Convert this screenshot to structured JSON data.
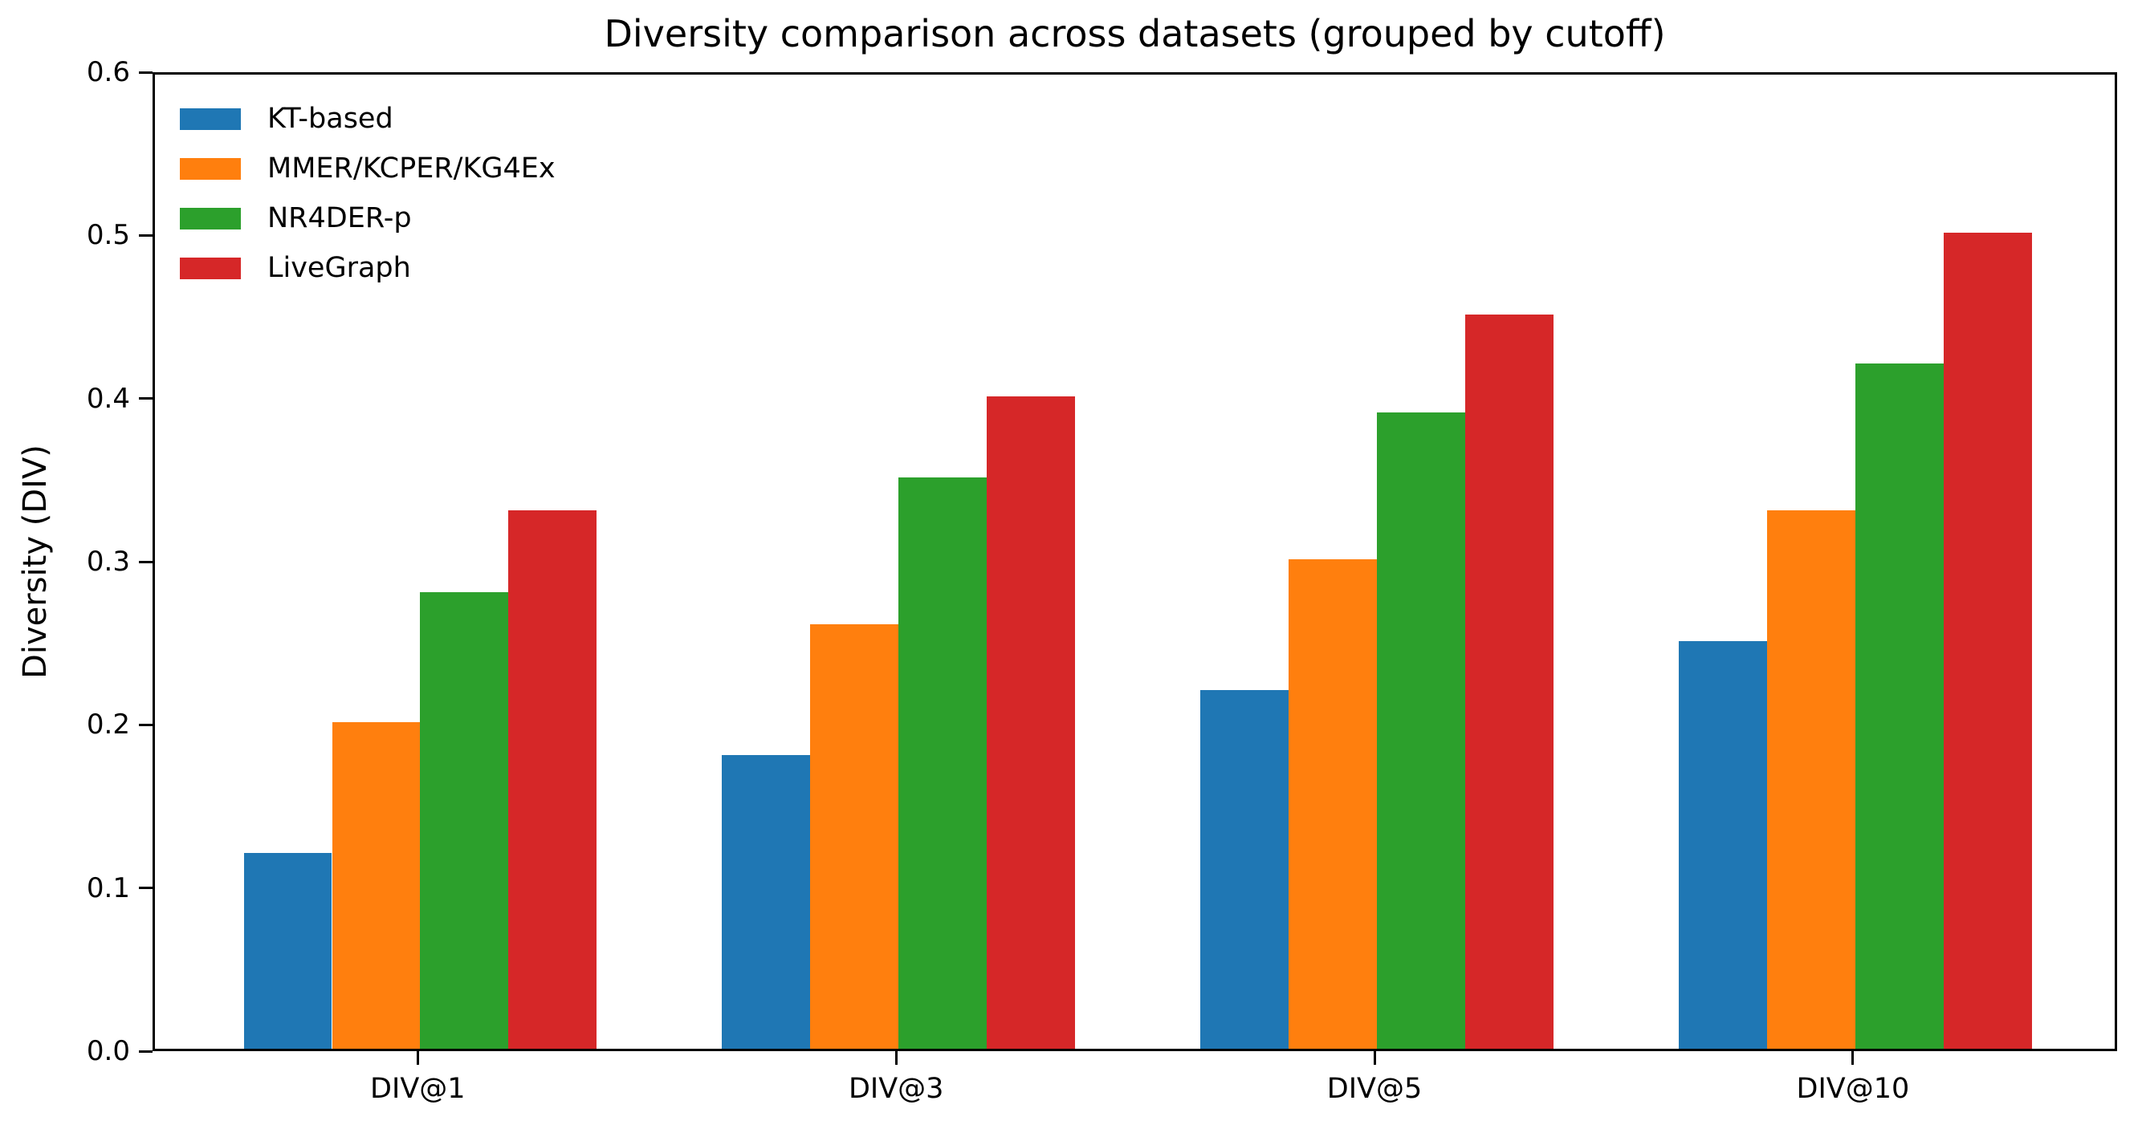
{
  "chart_data": {
    "type": "bar",
    "title": "Diversity comparison across datasets (grouped by cutoff)",
    "xlabel": "",
    "ylabel": "Diversity (DIV)",
    "categories": [
      "DIV@1",
      "DIV@3",
      "DIV@5",
      "DIV@10"
    ],
    "series": [
      {
        "name": "KT-based",
        "color": "#1f77b4",
        "values": [
          0.12,
          0.18,
          0.22,
          0.25
        ]
      },
      {
        "name": "MMER/KCPER/KG4Ex",
        "color": "#ff7f0e",
        "values": [
          0.2,
          0.26,
          0.3,
          0.33
        ]
      },
      {
        "name": "NR4DER-p",
        "color": "#2ca02c",
        "values": [
          0.28,
          0.35,
          0.39,
          0.42
        ]
      },
      {
        "name": "LiveGraph",
        "color": "#d62728",
        "values": [
          0.33,
          0.4,
          0.45,
          0.5
        ]
      }
    ],
    "ylim": [
      0.0,
      0.6
    ],
    "yticks": [
      "0.0",
      "0.1",
      "0.2",
      "0.3",
      "0.4",
      "0.5",
      "0.6"
    ],
    "grid": false,
    "legend_position": "upper left",
    "spine_color": "#000000",
    "background_color": "#ffffff"
  }
}
